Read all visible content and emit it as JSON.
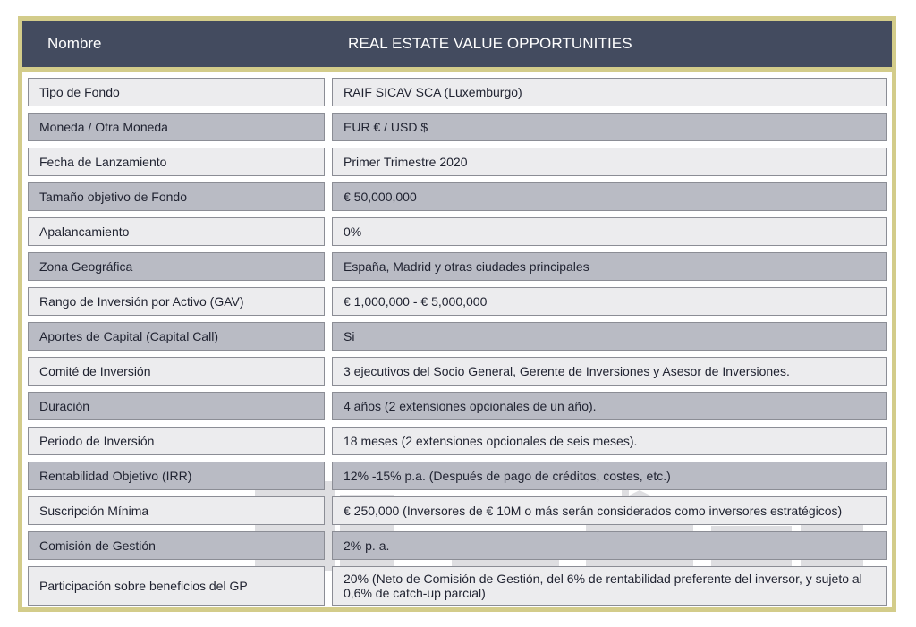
{
  "header": {
    "label": "Nombre",
    "value": "REAL ESTATE VALUE OPPORTUNITIES"
  },
  "rows": [
    {
      "label": "Tipo de Fondo",
      "value": "RAIF SICAV SCA (Luxemburgo)"
    },
    {
      "label": "Moneda / Otra Moneda",
      "value": "EUR € / USD $"
    },
    {
      "label": "Fecha de Lanzamiento",
      "value": "Primer Trimestre 2020"
    },
    {
      "label": "Tamaño objetivo de Fondo",
      "value": "€ 50,000,000"
    },
    {
      "label": "Apalancamiento",
      "value": "0%"
    },
    {
      "label": "Zona Geográfica",
      "value": "España, Madrid y otras ciudades principales"
    },
    {
      "label": "Rango de Inversión por Activo (GAV)",
      "value": "€ 1,000,000 - € 5,000,000"
    },
    {
      "label": "Aportes de Capital (Capital Call)",
      "value": "Si"
    },
    {
      "label": "Comité de Inversión",
      "value": "3 ejecutivos del Socio General, Gerente de Inversiones y Asesor de Inversiones."
    },
    {
      "label": "Duración",
      "value": "4 años (2 extensiones opcionales de un año)."
    },
    {
      "label": "Periodo de Inversión",
      "value": "18 meses (2 extensiones opcionales de seis meses)."
    },
    {
      "label": "Rentabilidad Objetivo (IRR)",
      "value": "12% -15% p.a. (Después de pago de créditos, costes, etc.)"
    },
    {
      "label": "Suscripción Mínima",
      "value": "€ 250,000 (Inversores de € 10M o más serán considerados como inversores estratégicos)"
    },
    {
      "label": "Comisión de Gestión",
      "value": "2% p. a."
    },
    {
      "label": "Participación sobre beneficios del GP",
      "value": "20% (Neto de Comisión de Gestión, del 6% de rentabilidad preferente del inversor, y sujeto al 0,6% de catch-up parcial)"
    }
  ],
  "colors": {
    "header_bg": "#434b5f",
    "frame": "#d3cc8a",
    "row_light": "#ececee",
    "row_dark": "#b9bbc4"
  }
}
